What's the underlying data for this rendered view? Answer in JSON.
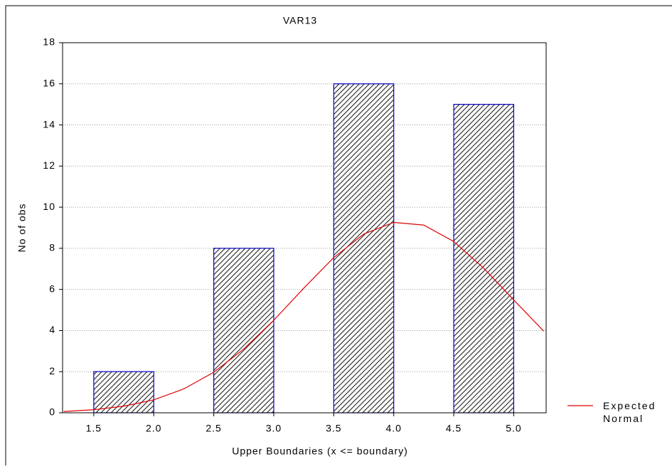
{
  "chart_data": {
    "type": "histogram",
    "title": "VAR13",
    "x_label": "Upper Boundaries (x <= boundary)",
    "y_label": "No of obs",
    "bins": [
      1.5,
      2.0,
      2.5,
      3.0,
      3.5,
      4.0,
      4.5,
      5.0
    ],
    "values": [
      2,
      0,
      8,
      0,
      16,
      0,
      15
    ],
    "color": "#0000c0",
    "curve": {
      "name": "Expected Normal",
      "color": "#e00000",
      "x": [
        1.25,
        1.5,
        1.75,
        2.0,
        2.25,
        2.5,
        2.75,
        3.0,
        3.25,
        3.5,
        3.75,
        4.0,
        4.25,
        4.5,
        4.75,
        5.0,
        5.25
      ],
      "values": [
        0.06,
        0.15,
        0.32,
        0.63,
        1.16,
        1.97,
        3.1,
        4.5,
        6.06,
        7.55,
        8.69,
        9.26,
        9.13,
        8.33,
        7.03,
        5.49,
        3.97
      ]
    },
    "xlim": [
      1.24,
      5.27
    ],
    "ylim": [
      0,
      18
    ],
    "xticks": [
      1.5,
      {
        "value": 2,
        "label": "2.0"
      },
      2.5,
      {
        "value": 3,
        "label": "3.0"
      },
      3.5,
      {
        "value": 4,
        "label": "4.0"
      },
      4.5,
      {
        "value": 5,
        "label": "5.0"
      }
    ],
    "yticks": [
      0,
      2,
      4,
      6,
      8,
      10,
      12,
      14,
      16,
      18
    ],
    "grid": true,
    "legend": "right"
  }
}
